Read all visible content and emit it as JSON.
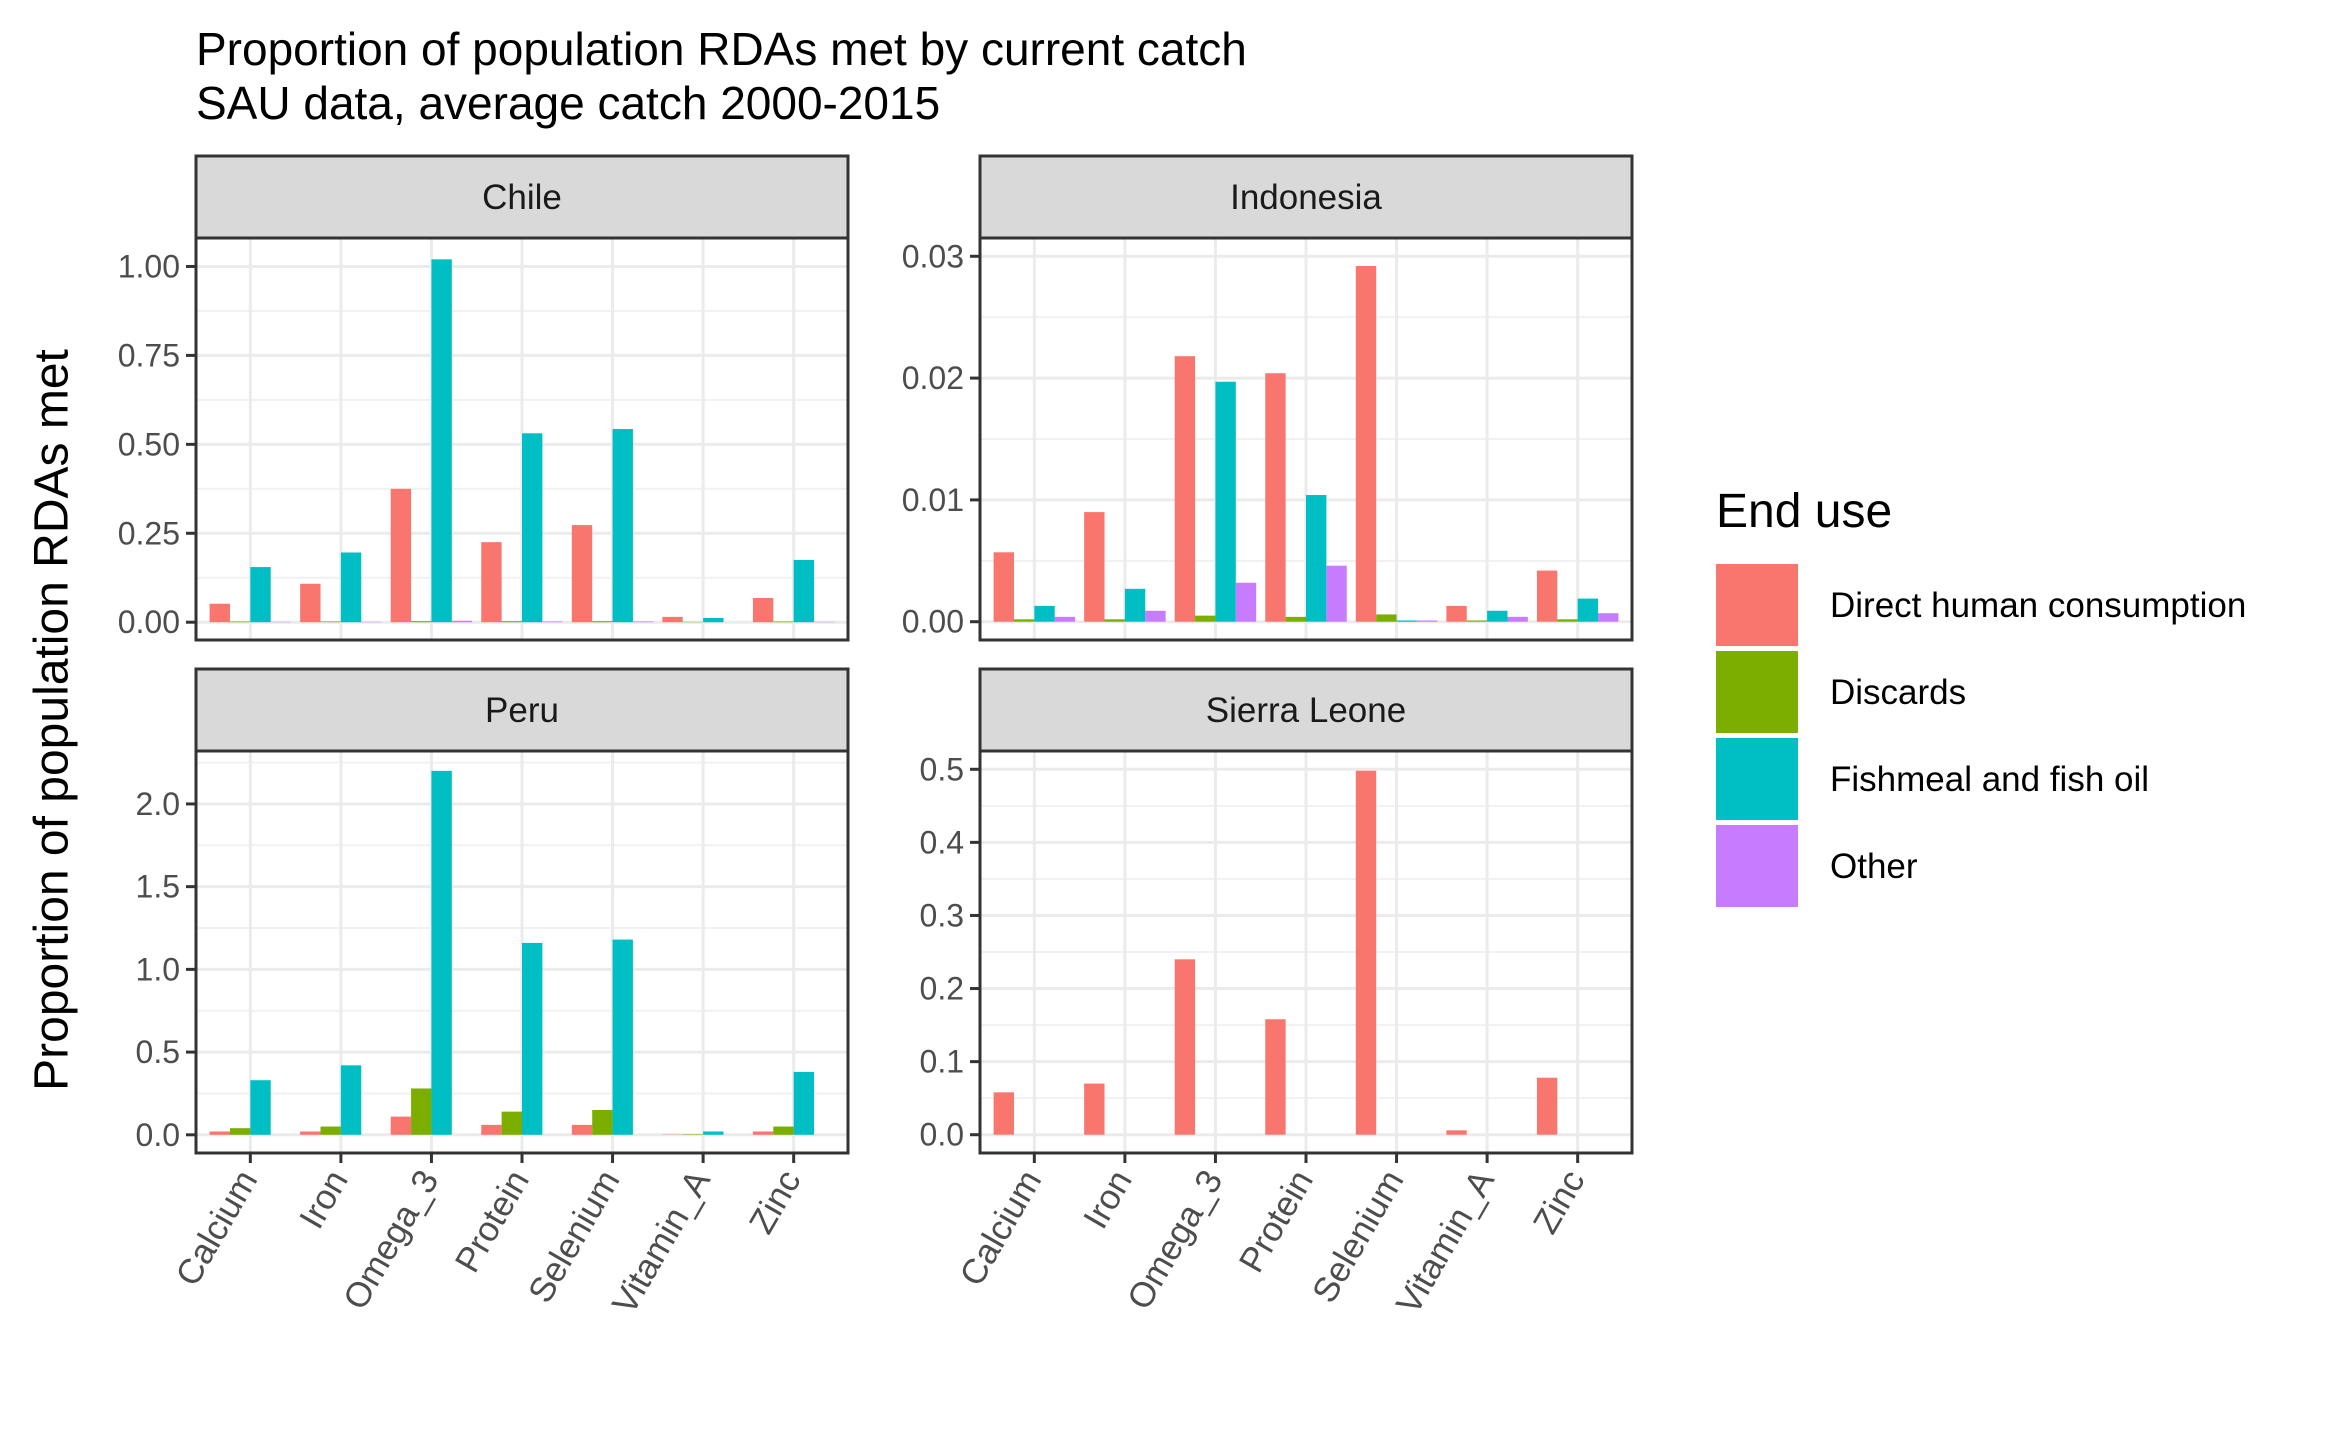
{
  "title": "Proportion of population RDAs met by current catch",
  "subtitle": "SAU data, average catch 2000-2015",
  "ylabel": "Proportion of population RDAs met",
  "colors": {
    "Direct human consumption": "#F8766D",
    "Discards": "#7CAE00",
    "Fishmeal and fish oil": "#00BFC4",
    "Other": "#C77CFF"
  },
  "legend": {
    "title": "End use",
    "placement": "right",
    "entries": [
      "Direct human consumption",
      "Discards",
      "Fishmeal and fish oil",
      "Other"
    ]
  },
  "chart_data": [
    {
      "type": "bar",
      "title": "Chile",
      "categories": [
        "Calcium",
        "Iron",
        "Omega_3",
        "Protein",
        "Selenium",
        "Vitamin_A",
        "Zinc"
      ],
      "ylim": [
        -0.05,
        1.08
      ],
      "yticks": [
        0,
        0.25,
        0.5,
        0.75,
        1
      ],
      "ytick_labels": [
        "0.00",
        "0.25",
        "0.50",
        "0.75",
        "1.00"
      ],
      "series": [
        {
          "name": "Direct human consumption",
          "values": [
            0.052,
            0.108,
            0.375,
            0.225,
            0.273,
            0.015,
            0.068
          ]
        },
        {
          "name": "Discards",
          "values": [
            0.002,
            0.002,
            0.003,
            0.003,
            0.003,
            0.001,
            0.002
          ]
        },
        {
          "name": "Fishmeal and fish oil",
          "values": [
            0.155,
            0.196,
            1.02,
            0.531,
            0.543,
            0.012,
            0.175
          ]
        },
        {
          "name": "Other",
          "values": [
            0.001,
            0.001,
            0.004,
            0.002,
            0.002,
            0.0,
            0.001
          ]
        }
      ]
    },
    {
      "type": "bar",
      "title": "Indonesia",
      "categories": [
        "Calcium",
        "Iron",
        "Omega_3",
        "Protein",
        "Selenium",
        "Vitamin_A",
        "Zinc"
      ],
      "ylim": [
        -0.0015,
        0.0315
      ],
      "yticks": [
        0,
        0.01,
        0.02,
        0.03
      ],
      "ytick_labels": [
        "0.00",
        "0.01",
        "0.02",
        "0.03"
      ],
      "series": [
        {
          "name": "Direct human consumption",
          "values": [
            0.0057,
            0.009,
            0.0218,
            0.0204,
            0.0292,
            0.0013,
            0.0042
          ]
        },
        {
          "name": "Discards",
          "values": [
            0.0002,
            0.0002,
            0.0005,
            0.0004,
            0.0006,
            0.0001,
            0.0002
          ]
        },
        {
          "name": "Fishmeal and fish oil",
          "values": [
            0.0013,
            0.0027,
            0.0197,
            0.0104,
            0.0001,
            0.0009,
            0.0019
          ]
        },
        {
          "name": "Other",
          "values": [
            0.0004,
            0.0009,
            0.0032,
            0.0046,
            0.0001,
            0.0004,
            0.0007
          ]
        }
      ]
    },
    {
      "type": "bar",
      "title": "Peru",
      "categories": [
        "Calcium",
        "Iron",
        "Omega_3",
        "Protein",
        "Selenium",
        "Vitamin_A",
        "Zinc"
      ],
      "ylim": [
        -0.11,
        2.32
      ],
      "yticks": [
        0,
        0.5,
        1,
        1.5,
        2
      ],
      "ytick_labels": [
        "0.0",
        "0.5",
        "1.0",
        "1.5",
        "2.0"
      ],
      "series": [
        {
          "name": "Direct human consumption",
          "values": [
            0.02,
            0.02,
            0.11,
            0.06,
            0.06,
            0.002,
            0.02
          ]
        },
        {
          "name": "Discards",
          "values": [
            0.04,
            0.05,
            0.28,
            0.14,
            0.15,
            0.003,
            0.05
          ]
        },
        {
          "name": "Fishmeal and fish oil",
          "values": [
            0.33,
            0.42,
            2.2,
            1.16,
            1.18,
            0.02,
            0.38
          ]
        },
        {
          "name": "Other",
          "values": [
            0.0,
            0.0,
            0.0,
            0.0,
            0.0,
            0.0,
            0.0
          ]
        }
      ]
    },
    {
      "type": "bar",
      "title": "Sierra Leone",
      "categories": [
        "Calcium",
        "Iron",
        "Omega_3",
        "Protein",
        "Selenium",
        "Vitamin_A",
        "Zinc"
      ],
      "ylim": [
        -0.025,
        0.525
      ],
      "yticks": [
        0,
        0.1,
        0.2,
        0.3,
        0.4,
        0.5
      ],
      "ytick_labels": [
        "0.0",
        "0.1",
        "0.2",
        "0.3",
        "0.4",
        "0.5"
      ],
      "series": [
        {
          "name": "Direct human consumption",
          "values": [
            0.058,
            0.07,
            0.24,
            0.158,
            0.498,
            0.006,
            0.078
          ]
        },
        {
          "name": "Discards",
          "values": [
            0.0,
            0.0,
            0.0,
            0.0,
            0.0,
            0.0,
            0.0
          ]
        },
        {
          "name": "Fishmeal and fish oil",
          "values": [
            0.0,
            0.0,
            0.0,
            0.0,
            0.0,
            0.0,
            0.0
          ]
        },
        {
          "name": "Other",
          "values": [
            0.0,
            0.0,
            0.0,
            0.0,
            0.0,
            0.0,
            0.0
          ]
        }
      ]
    }
  ]
}
